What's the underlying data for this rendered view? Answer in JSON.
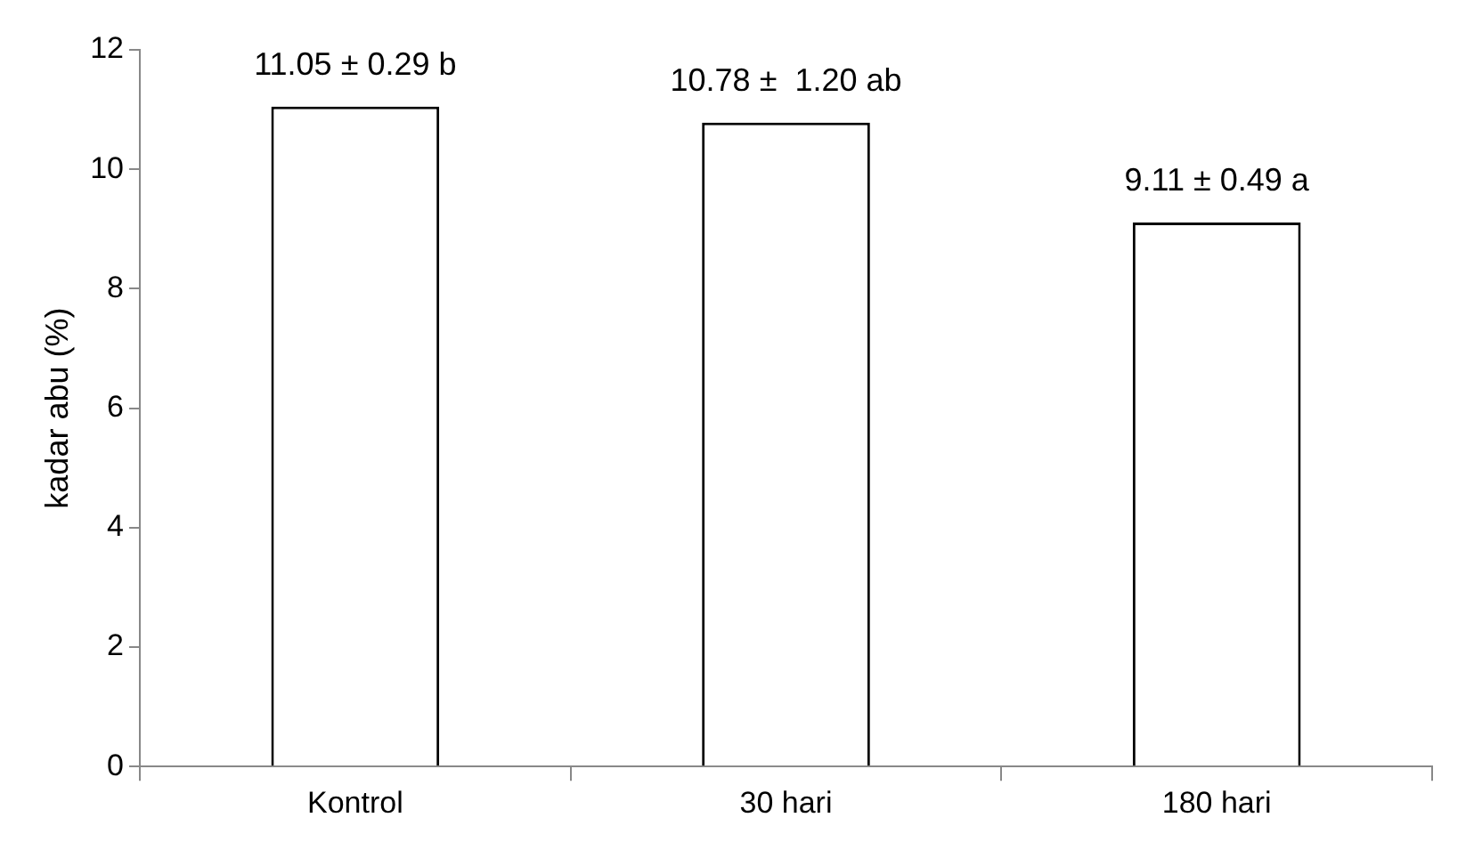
{
  "chart_data": {
    "type": "bar",
    "ylabel": "kadar abu (%)",
    "categories": [
      "Kontrol",
      "30 hari",
      "180 hari"
    ],
    "values": [
      11.05,
      10.78,
      9.11
    ],
    "value_labels": [
      "11.05 ± 0.29 b",
      "10.78 ±  1.20 ab",
      "9.11 ± 0.49 a"
    ],
    "color": "#ffffff",
    "ylim": [
      0,
      12
    ],
    "yticks": [
      0,
      2,
      4,
      6,
      8,
      10,
      12
    ],
    "grid": false,
    "legend": false
  }
}
